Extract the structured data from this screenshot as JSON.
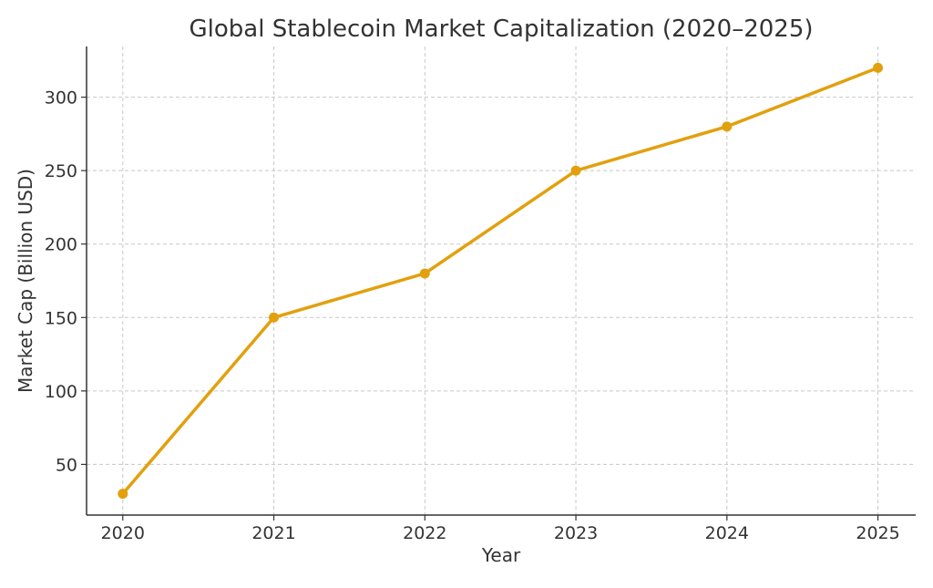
{
  "chart_data": {
    "type": "line",
    "title": "Global Stablecoin Market Capitalization (2020–2025)",
    "xlabel": "Year",
    "ylabel": "Market Cap (Billion USD)",
    "categories": [
      "2020",
      "2021",
      "2022",
      "2023",
      "2024",
      "2025"
    ],
    "series": [
      {
        "values": [
          30,
          150,
          180,
          250,
          280,
          320
        ],
        "color": "#e2a00e"
      }
    ],
    "xlim": [
      2019.76,
      2025.25
    ],
    "ylim": [
      15.5,
      334.5
    ],
    "yticks": [
      50,
      100,
      150,
      200,
      250,
      300
    ],
    "grid": true,
    "legend": "none"
  }
}
